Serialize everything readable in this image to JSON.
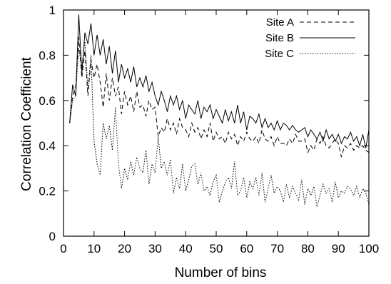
{
  "chart_data": {
    "type": "line",
    "title": "",
    "xlabel": "Number of bins",
    "ylabel": "Correlation Coefficient",
    "xlim": [
      0,
      100
    ],
    "ylim": [
      0,
      1
    ],
    "x_ticks": [
      "0",
      "10",
      "20",
      "30",
      "40",
      "50",
      "60",
      "70",
      "80",
      "90",
      "100"
    ],
    "y_ticks": [
      "0",
      "0.2",
      "0.4",
      "0.6",
      "0.8",
      "1"
    ],
    "grid": false,
    "legend_position": "top-right",
    "x": [
      2,
      3,
      4,
      5,
      6,
      7,
      8,
      9,
      10,
      11,
      12,
      13,
      14,
      15,
      16,
      17,
      18,
      19,
      20,
      21,
      22,
      23,
      24,
      25,
      26,
      27,
      28,
      29,
      30,
      31,
      32,
      33,
      34,
      35,
      36,
      37,
      38,
      39,
      40,
      41,
      42,
      43,
      44,
      45,
      46,
      47,
      48,
      49,
      50,
      51,
      52,
      53,
      54,
      55,
      56,
      57,
      58,
      59,
      60,
      61,
      62,
      63,
      64,
      65,
      66,
      67,
      68,
      69,
      70,
      71,
      72,
      73,
      74,
      75,
      76,
      77,
      78,
      79,
      80,
      81,
      82,
      83,
      84,
      85,
      86,
      87,
      88,
      89,
      90,
      91,
      92,
      93,
      94,
      95,
      96,
      97,
      98,
      99,
      100
    ],
    "series": [
      {
        "name": "Site A",
        "dash": "dashed",
        "values": [
          0.5,
          0.62,
          0.66,
          0.88,
          0.7,
          0.82,
          0.62,
          0.78,
          0.7,
          0.76,
          0.68,
          0.57,
          0.72,
          0.6,
          0.7,
          0.62,
          0.66,
          0.54,
          0.64,
          0.58,
          0.62,
          0.55,
          0.64,
          0.57,
          0.58,
          0.53,
          0.6,
          0.56,
          0.57,
          0.44,
          0.48,
          0.46,
          0.52,
          0.47,
          0.5,
          0.45,
          0.52,
          0.48,
          0.47,
          0.44,
          0.5,
          0.46,
          0.48,
          0.43,
          0.47,
          0.44,
          0.5,
          0.42,
          0.46,
          0.43,
          0.44,
          0.41,
          0.46,
          0.43,
          0.45,
          0.4,
          0.44,
          0.42,
          0.46,
          0.43,
          0.42,
          0.44,
          0.41,
          0.47,
          0.43,
          0.42,
          0.44,
          0.4,
          0.44,
          0.41,
          0.41,
          0.4,
          0.43,
          0.41,
          0.45,
          0.42,
          0.42,
          0.43,
          0.37,
          0.4,
          0.38,
          0.43,
          0.41,
          0.44,
          0.4,
          0.39,
          0.41,
          0.43,
          0.41,
          0.35,
          0.4,
          0.39,
          0.41,
          0.38,
          0.4,
          0.39,
          0.4,
          0.38,
          0.37
        ]
      },
      {
        "name": "Site B",
        "dash": "solid",
        "values": [
          0.5,
          0.67,
          0.62,
          0.98,
          0.72,
          0.9,
          0.85,
          0.94,
          0.8,
          0.89,
          0.8,
          0.87,
          0.76,
          0.84,
          0.72,
          0.82,
          0.68,
          0.76,
          0.7,
          0.74,
          0.68,
          0.75,
          0.66,
          0.7,
          0.66,
          0.71,
          0.64,
          0.68,
          0.62,
          0.58,
          0.64,
          0.6,
          0.55,
          0.62,
          0.58,
          0.62,
          0.56,
          0.6,
          0.52,
          0.58,
          0.56,
          0.54,
          0.6,
          0.52,
          0.57,
          0.55,
          0.58,
          0.52,
          0.56,
          0.53,
          0.5,
          0.56,
          0.51,
          0.55,
          0.5,
          0.58,
          0.5,
          0.55,
          0.47,
          0.53,
          0.52,
          0.5,
          0.54,
          0.48,
          0.52,
          0.48,
          0.5,
          0.47,
          0.51,
          0.47,
          0.5,
          0.49,
          0.47,
          0.49,
          0.47,
          0.46,
          0.47,
          0.48,
          0.44,
          0.47,
          0.45,
          0.43,
          0.46,
          0.42,
          0.47,
          0.43,
          0.45,
          0.42,
          0.45,
          0.41,
          0.44,
          0.43,
          0.46,
          0.42,
          0.44,
          0.4,
          0.45,
          0.39,
          0.47
        ]
      },
      {
        "name": "Site C",
        "dash": "dotted",
        "values": [
          0.5,
          0.6,
          0.62,
          0.83,
          0.75,
          0.86,
          0.65,
          0.8,
          0.42,
          0.32,
          0.27,
          0.5,
          0.43,
          0.49,
          0.38,
          0.57,
          0.32,
          0.21,
          0.3,
          0.25,
          0.33,
          0.27,
          0.35,
          0.3,
          0.28,
          0.38,
          0.23,
          0.32,
          0.28,
          0.44,
          0.3,
          0.33,
          0.27,
          0.34,
          0.19,
          0.26,
          0.21,
          0.32,
          0.2,
          0.25,
          0.31,
          0.32,
          0.23,
          0.28,
          0.2,
          0.22,
          0.18,
          0.24,
          0.27,
          0.15,
          0.2,
          0.24,
          0.26,
          0.21,
          0.33,
          0.18,
          0.2,
          0.26,
          0.17,
          0.24,
          0.21,
          0.26,
          0.18,
          0.28,
          0.15,
          0.21,
          0.27,
          0.19,
          0.22,
          0.2,
          0.15,
          0.23,
          0.17,
          0.22,
          0.19,
          0.16,
          0.25,
          0.14,
          0.21,
          0.18,
          0.22,
          0.13,
          0.18,
          0.23,
          0.19,
          0.21,
          0.15,
          0.24,
          0.17,
          0.2,
          0.19,
          0.22,
          0.21,
          0.18,
          0.22,
          0.17,
          0.21,
          0.19,
          0.14
        ]
      }
    ]
  }
}
